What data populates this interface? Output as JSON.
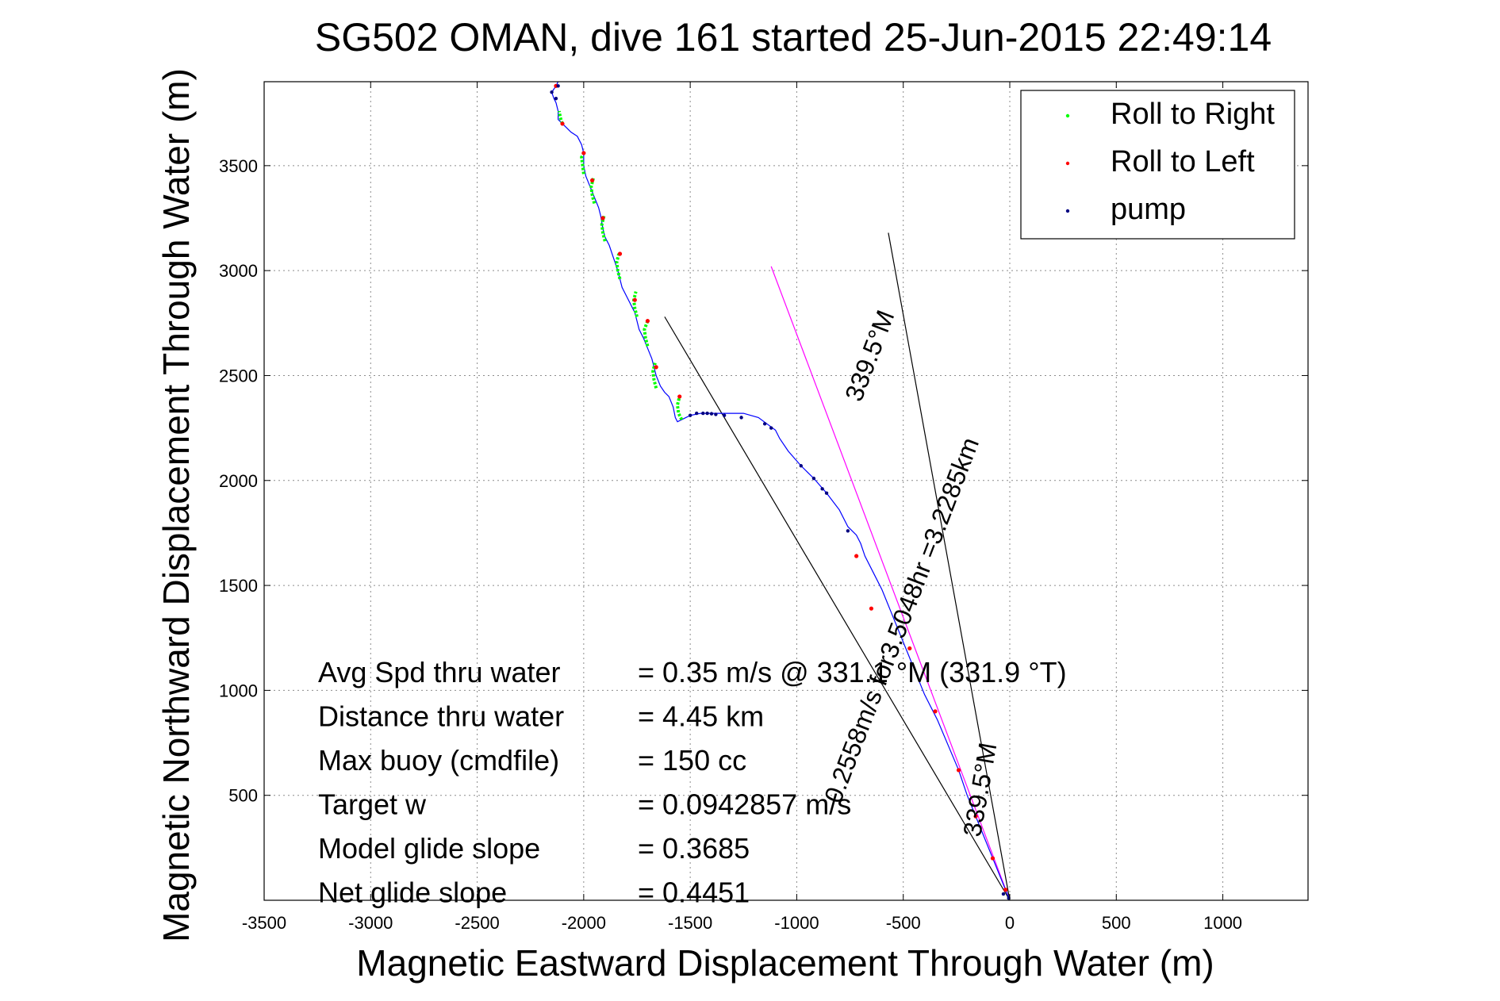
{
  "chart_data": {
    "type": "scatter",
    "title": "SG502 OMAN, dive 161 started 25-Jun-2015 22:49:14",
    "xlabel": "Magnetic Eastward Displacement Through Water (m)",
    "ylabel": "Magnetic Northward Displacement Through Water (m)",
    "xlim": [
      -3500,
      1400
    ],
    "ylim": [
      0,
      3900
    ],
    "xticks": [
      -3500,
      -3000,
      -2500,
      -2000,
      -1500,
      -1000,
      -500,
      0,
      500,
      1000
    ],
    "yticks": [
      500,
      1000,
      1500,
      2000,
      2500,
      3000,
      3500
    ],
    "grid": true,
    "legend_position": "top-right",
    "legend": [
      {
        "label": "Roll to Right",
        "color": "#00ff00"
      },
      {
        "label": "Roll to Left",
        "color": "#ff0000"
      },
      {
        "label": "pump",
        "color": "#000080"
      }
    ],
    "track": {
      "name": "track",
      "color": "#0000ff",
      "x": [
        0,
        -40,
        -80,
        -120,
        -160,
        -200,
        -240,
        -290,
        -340,
        -400,
        -440,
        -480,
        -520,
        -560,
        -600,
        -640,
        -680,
        -700,
        -720,
        -760,
        -800,
        -860,
        -920,
        -980,
        -1040,
        -1080,
        -1100,
        -1140,
        -1180,
        -1250,
        -1350,
        -1450,
        -1500,
        -1540,
        -1560,
        -1570,
        -1580,
        -1600,
        -1620,
        -1640,
        -1660,
        -1670,
        -1680,
        -1700,
        -1720,
        -1740,
        -1750,
        -1760,
        -1780,
        -1800,
        -1820,
        -1830,
        -1840,
        -1860,
        -1880,
        -1900,
        -1910,
        -1920,
        -1930,
        -1950,
        -1970,
        -1990,
        -2000,
        -2000,
        -2010,
        -2030,
        -2060,
        -2080,
        -2100,
        -2120,
        -2120,
        -2130,
        -2140,
        -2150,
        -2130,
        -2120
      ],
      "y": [
        0,
        100,
        200,
        300,
        400,
        500,
        620,
        740,
        860,
        980,
        1080,
        1180,
        1280,
        1380,
        1480,
        1560,
        1640,
        1700,
        1740,
        1780,
        1860,
        1940,
        2010,
        2070,
        2140,
        2200,
        2240,
        2270,
        2300,
        2320,
        2320,
        2320,
        2310,
        2290,
        2280,
        2300,
        2350,
        2400,
        2420,
        2450,
        2500,
        2540,
        2580,
        2630,
        2680,
        2720,
        2760,
        2800,
        2840,
        2880,
        2920,
        2960,
        3000,
        3060,
        3120,
        3160,
        3200,
        3260,
        3300,
        3350,
        3400,
        3450,
        3500,
        3560,
        3600,
        3640,
        3660,
        3680,
        3700,
        3720,
        3760,
        3800,
        3820,
        3850,
        3880,
        3900
      ]
    },
    "roll_right_segments": [
      {
        "x": [
          -1540,
          -1555,
          -1560,
          -1550
        ],
        "y": [
          2290,
          2320,
          2360,
          2400
        ]
      },
      {
        "x": [
          -1660,
          -1670,
          -1675,
          -1665
        ],
        "y": [
          2440,
          2480,
          2520,
          2560
        ]
      },
      {
        "x": [
          -1700,
          -1710,
          -1715,
          -1700
        ],
        "y": [
          2640,
          2680,
          2720,
          2760
        ]
      },
      {
        "x": [
          -1750,
          -1760,
          -1765,
          -1755
        ],
        "y": [
          2780,
          2820,
          2860,
          2900
        ]
      },
      {
        "x": [
          -1830,
          -1840,
          -1845,
          -1835
        ],
        "y": [
          2960,
          3000,
          3040,
          3080
        ]
      },
      {
        "x": [
          -1900,
          -1910,
          -1915,
          -1905
        ],
        "y": [
          3140,
          3180,
          3220,
          3260
        ]
      },
      {
        "x": [
          -1950,
          -1960,
          -1965,
          -1955
        ],
        "y": [
          3320,
          3360,
          3400,
          3440
        ]
      },
      {
        "x": [
          -2000,
          -2005,
          -2010,
          -2000
        ],
        "y": [
          3460,
          3500,
          3540,
          3560
        ]
      },
      {
        "x": [
          -2100,
          -2110,
          -2115
        ],
        "y": [
          3700,
          3730,
          3760
        ]
      }
    ],
    "roll_left_points": {
      "x": [
        -20,
        -80,
        -160,
        -240,
        -350,
        -470,
        -650,
        -720,
        -1550,
        -1660,
        -1700,
        -1760,
        -1830,
        -1910,
        -1960,
        -2000,
        -2100,
        -2130
      ],
      "y": [
        50,
        200,
        400,
        620,
        900,
        1200,
        1390,
        1640,
        2400,
        2540,
        2760,
        2860,
        3080,
        3250,
        3430,
        3560,
        3700,
        3880
      ]
    },
    "pump_points": {
      "x": [
        -5,
        -30,
        -1120,
        -1150,
        -1260,
        -1340,
        -1380,
        -1400,
        -1420,
        -1440,
        -1470,
        -1500,
        -980,
        -920,
        -880,
        -860,
        -760,
        -2130,
        -2150,
        -2120
      ],
      "y": [
        10,
        30,
        2250,
        2270,
        2300,
        2310,
        2315,
        2318,
        2320,
        2320,
        2320,
        2310,
        2070,
        2010,
        1960,
        1940,
        1760,
        3820,
        3850,
        3880
      ]
    },
    "reference_lines": [
      {
        "name": "line-339-upper",
        "color": "#000000",
        "x": [
          0,
          -570
        ],
        "y": [
          0,
          3180
        ]
      },
      {
        "name": "line-339-lower",
        "color": "#000000",
        "x": [
          0,
          -1620
        ],
        "y": [
          0,
          2780
        ]
      },
      {
        "name": "line-magenta",
        "color": "#ff00ff",
        "x": [
          0,
          -1120
        ],
        "y": [
          0,
          3020
        ]
      }
    ],
    "line_annotations": [
      {
        "text": "0.2558m/s for3.5048hr =3.2285km",
        "x": -470,
        "y": 1320,
        "angle": -69
      },
      {
        "text": "339.5°M",
        "x": -620,
        "y": 2580,
        "angle": -69
      },
      {
        "text": "339.5°M",
        "x": -100,
        "y": 520,
        "angle": -80
      }
    ],
    "annotations": [
      {
        "label": "Avg Spd thru water",
        "value": "=  0.35 m/s @ 331.1 °M (331.9 °T)"
      },
      {
        "label": "Distance thru water",
        "value": "=  4.45 km"
      },
      {
        "label": "Max buoy (cmdfile)",
        "value": "= 150 cc"
      },
      {
        "label": "Target w",
        "value": "= 0.0942857 m/s"
      },
      {
        "label": "Model glide slope",
        "value": "= 0.3685"
      },
      {
        "label": "Net glide slope",
        "value": "= 0.4451"
      }
    ]
  }
}
